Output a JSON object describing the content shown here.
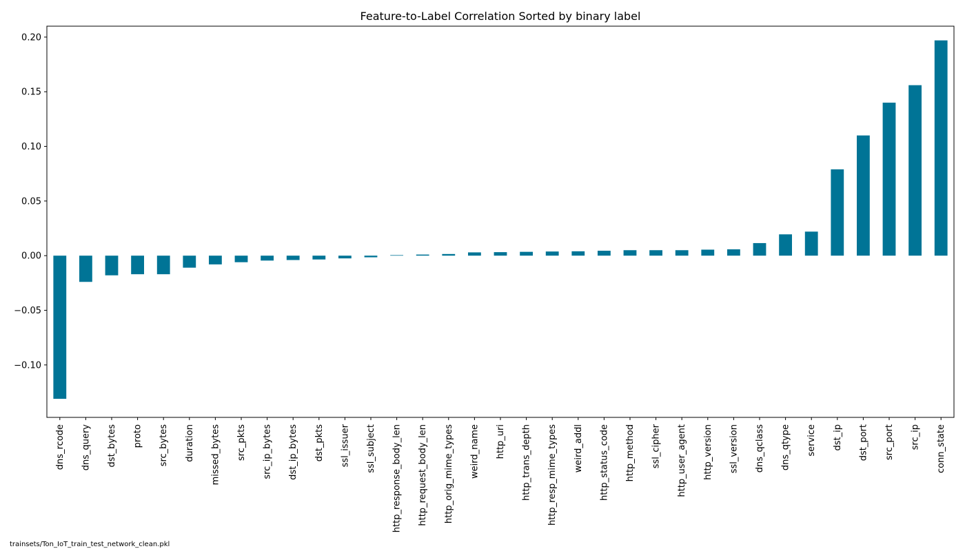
{
  "chart_data": {
    "type": "bar",
    "title": "Feature-to-Label Correlation Sorted by binary label",
    "xlabel": "",
    "ylabel": "",
    "ylim": [
      -0.148,
      0.21
    ],
    "yticks": [
      -0.1,
      -0.05,
      0.0,
      0.05,
      0.1,
      0.15,
      0.2
    ],
    "ytick_labels": [
      "−0.10",
      "−0.05",
      "0.00",
      "0.05",
      "0.10",
      "0.15",
      "0.20"
    ],
    "bar_color": "#007496",
    "grid": false,
    "legend": "none",
    "categories": [
      "dns_rcode",
      "dns_query",
      "dst_bytes",
      "proto",
      "src_bytes",
      "duration",
      "missed_bytes",
      "src_pkts",
      "src_ip_bytes",
      "dst_ip_bytes",
      "dst_pkts",
      "ssl_issuer",
      "ssl_subject",
      "http_response_body_len",
      "http_request_body_len",
      "http_orig_mime_types",
      "weird_name",
      "http_uri",
      "http_trans_depth",
      "http_resp_mime_types",
      "weird_addl",
      "http_status_code",
      "http_method",
      "ssl_cipher",
      "http_user_agent",
      "http_version",
      "ssl_version",
      "dns_qclass",
      "dns_qtype",
      "service",
      "dst_ip",
      "dst_port",
      "src_port",
      "src_ip",
      "conn_state"
    ],
    "values": [
      -0.131,
      -0.024,
      -0.018,
      -0.017,
      -0.017,
      -0.011,
      -0.008,
      -0.006,
      -0.0045,
      -0.004,
      -0.0035,
      -0.0025,
      -0.0015,
      0.0005,
      0.001,
      0.0015,
      0.003,
      0.0032,
      0.0035,
      0.0038,
      0.004,
      0.0045,
      0.005,
      0.005,
      0.005,
      0.0055,
      0.0058,
      0.0115,
      0.0195,
      0.022,
      0.079,
      0.11,
      0.14,
      0.156,
      0.197
    ]
  },
  "footnote": "trainsets/Ton_IoT_train_test_network_clean.pkl"
}
